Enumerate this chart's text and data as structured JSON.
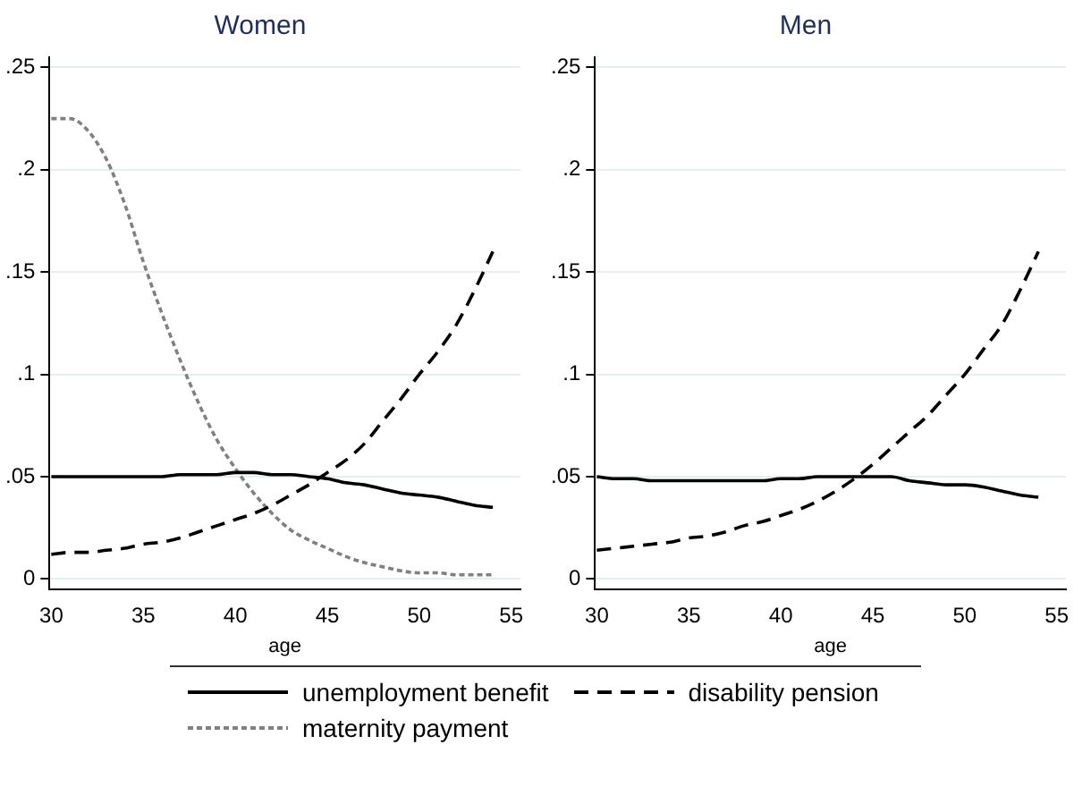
{
  "chart_data": [
    {
      "type": "line",
      "title": "Women",
      "xlabel": "age",
      "x": [
        30,
        31,
        32,
        33,
        34,
        35,
        36,
        37,
        38,
        39,
        40,
        41,
        42,
        43,
        44,
        45,
        46,
        47,
        48,
        49,
        50,
        51,
        52,
        53,
        54
      ],
      "series": [
        {
          "name": "unemployment benefit",
          "color": "#000000",
          "line_style": "solid",
          "values": [
            0.05,
            0.05,
            0.05,
            0.05,
            0.05,
            0.05,
            0.05,
            0.051,
            0.051,
            0.051,
            0.052,
            0.052,
            0.051,
            0.051,
            0.05,
            0.049,
            0.047,
            0.046,
            0.044,
            0.042,
            0.041,
            0.04,
            0.038,
            0.036,
            0.035
          ]
        },
        {
          "name": "disability pension",
          "color": "#000000",
          "line_style": "dashed",
          "values": [
            0.012,
            0.013,
            0.013,
            0.014,
            0.015,
            0.017,
            0.018,
            0.02,
            0.023,
            0.026,
            0.029,
            0.032,
            0.036,
            0.041,
            0.046,
            0.052,
            0.058,
            0.066,
            0.077,
            0.088,
            0.1,
            0.111,
            0.124,
            0.141,
            0.16
          ]
        },
        {
          "name": "maternity payment",
          "color": "#808080",
          "line_style": "dotted",
          "values": [
            0.225,
            0.225,
            0.219,
            0.205,
            0.183,
            0.155,
            0.13,
            0.107,
            0.086,
            0.068,
            0.054,
            0.042,
            0.032,
            0.024,
            0.019,
            0.015,
            0.011,
            0.008,
            0.006,
            0.004,
            0.003,
            0.003,
            0.002,
            0.002,
            0.002
          ]
        }
      ],
      "xlim": [
        29.9,
        55.5
      ],
      "xticks": [
        30,
        35,
        40,
        45,
        50,
        55
      ],
      "ylim": [
        -0.005,
        0.255
      ],
      "yticks": [
        0,
        {
          "value": 0.05,
          "label": ".05"
        },
        {
          "value": 0.1,
          "label": ".1"
        },
        {
          "value": 0.15,
          "label": ".15"
        },
        {
          "value": 0.2,
          "label": ".2"
        },
        {
          "value": 0.25,
          "label": ".25"
        }
      ],
      "grid": "y",
      "legend": "bottom",
      "marker": "none"
    },
    {
      "type": "line",
      "title": "Men",
      "xlabel": "age",
      "x": [
        30,
        31,
        32,
        33,
        34,
        35,
        36,
        37,
        38,
        39,
        40,
        41,
        42,
        43,
        44,
        45,
        46,
        47,
        48,
        49,
        50,
        51,
        52,
        53,
        54
      ],
      "series": [
        {
          "name": "unemployment benefit",
          "color": "#000000",
          "line_style": "solid",
          "values": [
            0.05,
            0.049,
            0.049,
            0.048,
            0.048,
            0.048,
            0.048,
            0.048,
            0.048,
            0.048,
            0.049,
            0.049,
            0.05,
            0.05,
            0.05,
            0.05,
            0.05,
            0.048,
            0.047,
            0.046,
            0.046,
            0.045,
            0.043,
            0.041,
            0.04
          ]
        },
        {
          "name": "disability pension",
          "color": "#000000",
          "line_style": "dashed",
          "values": [
            0.014,
            0.015,
            0.016,
            0.017,
            0.018,
            0.02,
            0.021,
            0.023,
            0.026,
            0.028,
            0.031,
            0.034,
            0.038,
            0.043,
            0.049,
            0.056,
            0.064,
            0.072,
            0.08,
            0.09,
            0.1,
            0.112,
            0.124,
            0.141,
            0.16
          ]
        }
      ],
      "xlim": [
        29.9,
        55.5
      ],
      "xticks": [
        30,
        35,
        40,
        45,
        50,
        55
      ],
      "ylim": [
        -0.005,
        0.255
      ],
      "yticks": [
        0,
        {
          "value": 0.05,
          "label": ".05"
        },
        {
          "value": 0.1,
          "label": ".1"
        },
        {
          "value": 0.15,
          "label": ".15"
        },
        {
          "value": 0.2,
          "label": ".2"
        },
        {
          "value": 0.25,
          "label": ".25"
        }
      ],
      "grid": "y",
      "legend": "bottom",
      "marker": "none"
    }
  ]
}
